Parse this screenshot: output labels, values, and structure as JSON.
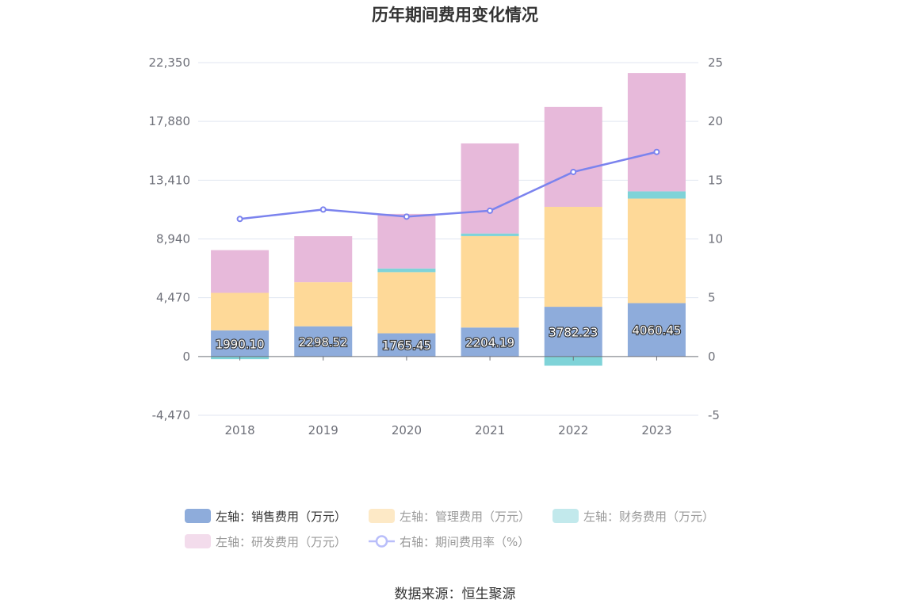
{
  "chart_data": {
    "type": "bar",
    "title": "历年期间费用变化情况",
    "categories": [
      "2018",
      "2019",
      "2020",
      "2021",
      "2022",
      "2023"
    ],
    "y_left": {
      "ticks": [
        "22,350",
        "17,880",
        "13,410",
        "8,940",
        "4,470",
        "0",
        "-4,470"
      ],
      "range": [
        -4470,
        22350
      ]
    },
    "y_right": {
      "ticks": [
        "25",
        "20",
        "15",
        "10",
        "5",
        "0",
        "-5"
      ],
      "range": [
        -5,
        25
      ]
    },
    "stacked": true,
    "series": [
      {
        "name": "左轴：销售费用（万元）",
        "axis": "left",
        "kind": "bar",
        "color": "#8eacdb",
        "values": [
          1990.1,
          2298.52,
          1765.45,
          2204.19,
          3782.23,
          4060.45
        ],
        "labels": [
          "1990.10",
          "2298.52",
          "1765.45",
          "2204.19",
          "3782.23",
          "4060.45"
        ]
      },
      {
        "name": "左轴：管理费用（万元）",
        "axis": "left",
        "kind": "bar",
        "color": "#fed998",
        "values": [
          2850,
          3350,
          4650,
          6950,
          7600,
          7950
        ]
      },
      {
        "name": "左轴：财务费用（万元）",
        "axis": "left",
        "kind": "bar",
        "color": "#7fd3d8",
        "values": [
          -200,
          -30,
          280,
          200,
          -700,
          550
        ]
      },
      {
        "name": "左轴：研发费用（万元）",
        "axis": "left",
        "kind": "bar",
        "color": "#e7b9da",
        "values": [
          3250,
          3500,
          4150,
          6850,
          7600,
          9000
        ]
      },
      {
        "name": "右轴：期间费用率（%）",
        "axis": "right",
        "kind": "line",
        "color": "#7b83ee",
        "values": [
          11.7,
          12.5,
          11.9,
          12.4,
          15.7,
          17.4
        ]
      }
    ],
    "legend_position": "bottom",
    "grid": true
  },
  "legend_items": [
    {
      "label": "左轴：销售费用（万元）",
      "color": "#8eacdb",
      "text_color": "#333333",
      "shape": "rect"
    },
    {
      "label": "左轴：管理费用（万元）",
      "color": "#fde9c6",
      "text_color": "#999999",
      "shape": "rect"
    },
    {
      "label": "左轴：财务费用（万元）",
      "color": "#c2e9ec",
      "text_color": "#999999",
      "shape": "rect"
    },
    {
      "label": "左轴：研发费用（万元）",
      "color": "#f3dcec",
      "text_color": "#999999",
      "shape": "rect"
    },
    {
      "label": "右轴：期间费用率（%）",
      "color": "#b9befa",
      "text_color": "#999999",
      "shape": "line"
    }
  ],
  "source": "数据来源：恒生聚源"
}
